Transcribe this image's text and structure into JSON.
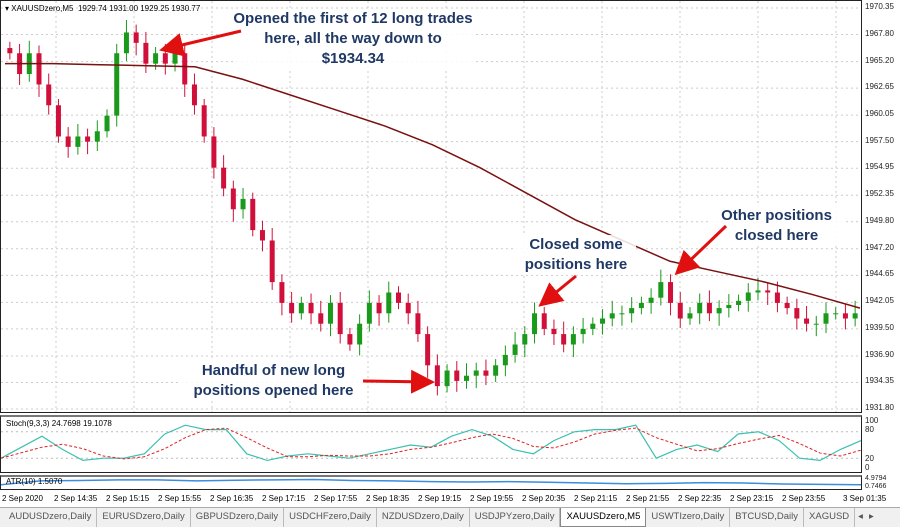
{
  "header": {
    "symbol": "XAUUSDzero,M5",
    "ohlc": "1929.74 1931.00 1929.25 1930.77"
  },
  "colors": {
    "bull": "#1a9a1a",
    "bear": "#d0103a",
    "ma": "#7a1010",
    "stoch_k": "#3cc0b0",
    "stoch_d": "#e02020",
    "atr": "#3a8de0",
    "annotation": "#1f3864",
    "arrow": "#e01010"
  },
  "annotations": [
    {
      "text": "Opened the first of 12 long trades here, all the way down to $1934.34"
    },
    {
      "text": "Closed some positions here"
    },
    {
      "text": "Other positions closed here"
    },
    {
      "text": "Handful of new long positions opened here"
    }
  ],
  "chart_data": [
    {
      "type": "candlestick",
      "title": "XAUUSDzero,M5",
      "ylim": [
        1931.8,
        1970.35
      ],
      "yticks": [
        "1970.35",
        "1967.80",
        "1965.20",
        "1962.65",
        "1960.05",
        "1957.50",
        "1954.95",
        "1952.35",
        "1949.80",
        "1947.20",
        "1944.65",
        "1942.05",
        "1939.50",
        "1936.90",
        "1934.35",
        "1931.80"
      ],
      "close": [
        1966,
        1964,
        1966,
        1963,
        1961,
        1958,
        1957,
        1958,
        1957.5,
        1958.5,
        1960,
        1966,
        1968,
        1967,
        1965,
        1966,
        1965,
        1966,
        1963,
        1961,
        1958,
        1955,
        1953,
        1951,
        1952,
        1949,
        1948,
        1944,
        1942,
        1941,
        1942,
        1941,
        1940,
        1942,
        1939,
        1938,
        1940,
        1942,
        1941,
        1943,
        1942,
        1941,
        1939,
        1936,
        1934,
        1935.5,
        1934.5,
        1935,
        1935.5,
        1935,
        1936,
        1937,
        1938,
        1939,
        1941,
        1939.5,
        1939,
        1938,
        1939,
        1939.5,
        1940,
        1940.5,
        1941,
        1941,
        1941.5,
        1942,
        1942.5,
        1944,
        1942,
        1940.5,
        1941,
        1942,
        1941,
        1941.5,
        1941.8,
        1942.2,
        1943,
        1943.2,
        1943,
        1942,
        1941.5,
        1940.5,
        1940,
        1940,
        1941,
        1941,
        1940.5,
        1941
      ],
      "moving_average": [
        1965,
        1965,
        1964.9,
        1964.8,
        1964.7,
        1963.5,
        1962,
        1960.5,
        1959,
        1957.2,
        1955,
        1952.5,
        1950,
        1948,
        1946,
        1945,
        1944,
        1942.8,
        1941.5
      ]
    },
    {
      "type": "line",
      "label": "Stoch(9,3,3) 24.7698 19.1078",
      "ylim": [
        0,
        100
      ],
      "yticks": [
        "100",
        "80",
        "20",
        "0"
      ],
      "k": [
        20,
        45,
        70,
        40,
        15,
        20,
        20,
        30,
        75,
        95,
        85,
        85,
        30,
        15,
        25,
        30,
        25,
        20,
        30,
        40,
        50,
        45,
        70,
        85,
        70,
        40,
        30,
        60,
        80,
        85,
        85,
        95,
        20,
        40,
        50,
        35,
        75,
        80,
        60,
        20,
        15,
        40,
        60
      ]
    },
    {
      "type": "line",
      "label": "ATR(10) 1.5070",
      "yticks": [
        "4.9794",
        "0.7466"
      ],
      "values": [
        1.5,
        2.6,
        2.7,
        2.9,
        2.9,
        2.6,
        2.8,
        2.9,
        3.0,
        2.7,
        2.6,
        2.4,
        2.3,
        2.4,
        2.2,
        2.0,
        1.8,
        1.9,
        2.1,
        2.0,
        1.7,
        1.6,
        1.5
      ]
    }
  ],
  "time_axis": [
    "2 Sep 2020",
    "2 Sep 14:35",
    "2 Sep 15:15",
    "2 Sep 15:55",
    "2 Sep 16:35",
    "2 Sep 17:15",
    "2 Sep 17:55",
    "2 Sep 18:35",
    "2 Sep 19:15",
    "2 Sep 19:55",
    "2 Sep 20:35",
    "2 Sep 21:15",
    "2 Sep 21:55",
    "2 Sep 22:35",
    "2 Sep 23:15",
    "2 Sep 23:55",
    "3 Sep 01:35"
  ],
  "tabs": [
    "AUDUSDzero,Daily",
    "EURUSDzero,Daily",
    "GBPUSDzero,Daily",
    "USDCHFzero,Daily",
    "NZDUSDzero,Daily",
    "USDJPYzero,Daily",
    "XAUUSDzero,M5",
    "USWTIzero,Daily",
    "BTCUSD,Daily",
    "XAGUSD"
  ],
  "active_tab": "XAUUSDzero,M5"
}
